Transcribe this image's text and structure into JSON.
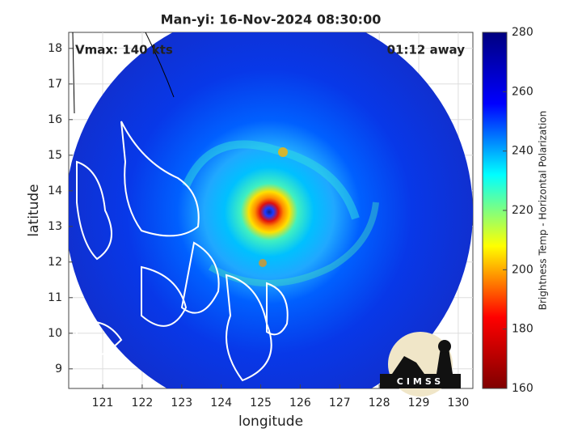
{
  "chart_data": {
    "type": "map",
    "title": "Man-yi: 16-Nov-2024 08:30:00",
    "xlabel": "longitude",
    "ylabel": "latitude",
    "xlim": [
      120.14,
      130.37
    ],
    "ylim": [
      8.45,
      18.45
    ],
    "xticks": [
      121,
      122,
      123,
      124,
      125,
      126,
      127,
      128,
      129,
      130
    ],
    "yticks": [
      9,
      10,
      11,
      12,
      13,
      14,
      15,
      16,
      17,
      18
    ],
    "grid": true,
    "annotations": [
      "Vmax: 140 kts",
      "01:12 away"
    ],
    "colorbar": {
      "label": "Brightness Temp - Horizontal Polarization",
      "clim": [
        160,
        280
      ],
      "ticks": [
        160,
        180,
        200,
        220,
        240,
        260,
        280
      ],
      "colormap": "jet"
    },
    "logo": "CIMSS"
  }
}
